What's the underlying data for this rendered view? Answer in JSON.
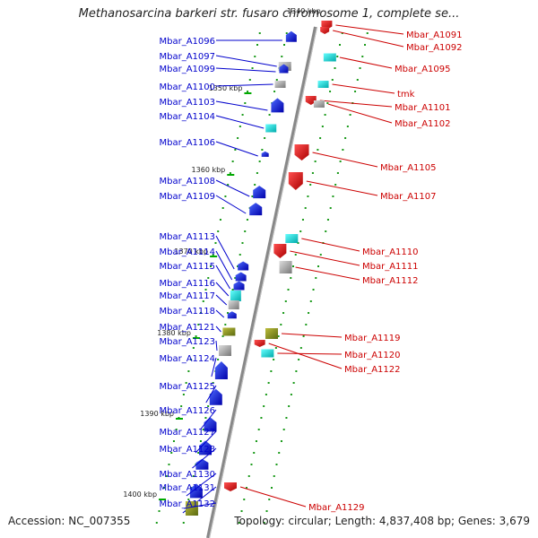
{
  "title": "Methanosarcina barkeri str. fusaro chromosome 1, complete se...",
  "top_tick_label": "1340 kbp",
  "footer": {
    "accession": "Accession: NC_007355",
    "topology": "Topology: circular; Length: 4,837,408 bp; Genes: 3,679"
  },
  "colors": {
    "forward": "#0000ee",
    "reverse": "#ee0000",
    "label_forward": "#0000cc",
    "label_reverse": "#cc0000",
    "tick": "#00aa00",
    "backbone": "#888888"
  },
  "ticks": [
    {
      "kbp": 1350,
      "label": "1350 kbp"
    },
    {
      "kbp": 1360,
      "label": "1360 kbp"
    },
    {
      "kbp": 1370,
      "label": "1370 kbp"
    },
    {
      "kbp": 1380,
      "label": "1380 kbp"
    },
    {
      "kbp": 1390,
      "label": "1390 kbp"
    },
    {
      "kbp": 1400,
      "label": "1400 kbp"
    }
  ],
  "genes_forward": [
    {
      "label": "Mbar_A1096",
      "type": "cds"
    },
    {
      "label": "Mbar_A1097",
      "type": "rna"
    },
    {
      "label": "Mbar_A1099",
      "type": "rna"
    },
    {
      "label": "Mbar_A1100",
      "type": "cds"
    },
    {
      "label": "Mbar_A1103",
      "type": "cds"
    },
    {
      "label": "Mbar_A1104",
      "type": "rna"
    },
    {
      "label": "Mbar_A1106",
      "type": "cds"
    },
    {
      "label": "Mbar_A1108",
      "type": "cds"
    },
    {
      "label": "Mbar_A1109",
      "type": "cds"
    },
    {
      "label": "Mbar_A1113",
      "type": "cds"
    },
    {
      "label": "Mbar_A1114",
      "type": "cds"
    },
    {
      "label": "Mbar_A1115",
      "type": "cds"
    },
    {
      "label": "Mbar_A1116",
      "type": "rna"
    },
    {
      "label": "Mbar_A1117",
      "type": "cds"
    },
    {
      "label": "Mbar_A1118",
      "type": "cds"
    },
    {
      "label": "Mbar_A1121",
      "type": "rna"
    },
    {
      "label": "Mbar_A1123",
      "type": "rna"
    },
    {
      "label": "Mbar_A1124",
      "type": "cds"
    },
    {
      "label": "Mbar_A1125",
      "type": "cds"
    },
    {
      "label": "Mbar_A1126",
      "type": "cds"
    },
    {
      "label": "Mbar_A1127",
      "type": "cds"
    },
    {
      "label": "Mbar_A1128",
      "type": "cds"
    },
    {
      "label": "Mbar_A1130",
      "type": "cds"
    },
    {
      "label": "Mbar_A1131",
      "type": "cds"
    },
    {
      "label": "Mbar_A1132",
      "type": "rna"
    }
  ],
  "genes_reverse": [
    {
      "label": "Mbar_A1091",
      "type": "cds"
    },
    {
      "label": "Mbar_A1092",
      "type": "cds"
    },
    {
      "label": "Mbar_A1095",
      "type": "rna"
    },
    {
      "label": "tmk",
      "type": "cds"
    },
    {
      "label": "Mbar_A1101",
      "type": "cds"
    },
    {
      "label": "Mbar_A1102",
      "type": "rna"
    },
    {
      "label": "Mbar_A1105",
      "type": "cds"
    },
    {
      "label": "Mbar_A1107",
      "type": "cds"
    },
    {
      "label": "Mbar_A1110",
      "type": "rna"
    },
    {
      "label": "Mbar_A1111",
      "type": "cds"
    },
    {
      "label": "Mbar_A1112",
      "type": "rna"
    },
    {
      "label": "Mbar_A1119",
      "type": "cds"
    },
    {
      "label": "Mbar_A1120",
      "type": "rna"
    },
    {
      "label": "Mbar_A1122",
      "type": "rna"
    },
    {
      "label": "Mbar_A1129",
      "type": "cds"
    }
  ]
}
